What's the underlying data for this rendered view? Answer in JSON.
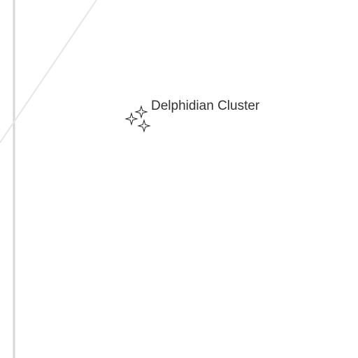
{
  "map": {
    "location": {
      "name": "Delphidian Cluster",
      "icon": "sparkles-icon"
    },
    "colors": {
      "background": "#ffffff",
      "border_line": "#d6d6d6",
      "route_line": "#e6e6e6",
      "label": "#333333",
      "icon_stroke": "#222222"
    }
  }
}
